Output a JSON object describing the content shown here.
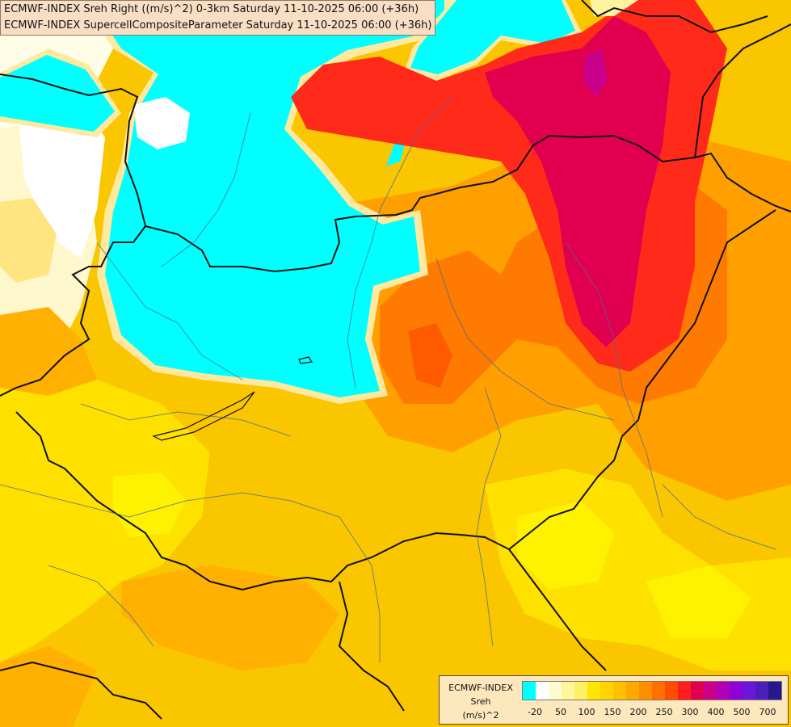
{
  "header": {
    "line1": "ECMWF-INDEX Sreh Right ((m/s)^2) 0-3km Saturday 11-10-2025 06:00 (+36h)",
    "line2": "ECMWF-INDEX SupercellCompositeParameter Saturday 11-10-2025 06:00 (+36h)"
  },
  "legend": {
    "title1": "ECMWF-INDEX",
    "title2": "Sreh",
    "title3": "(m/s)^2",
    "colors": [
      "#00ffff",
      "#ffffff",
      "#fffad0",
      "#fff59a",
      "#ffef66",
      "#ffe600",
      "#ffd400",
      "#ffc000",
      "#ffa800",
      "#ff8f00",
      "#ff7000",
      "#ff4c00",
      "#ff1c1c",
      "#e0004f",
      "#cc0088",
      "#b100b8",
      "#9000d8",
      "#6a18d8",
      "#4a20b8",
      "#281890"
    ],
    "ticks": [
      "-20",
      "50",
      "100",
      "150",
      "200",
      "250",
      "300",
      "400",
      "500",
      "700"
    ]
  },
  "colors": {
    "cyan": "#00ffff",
    "pale": "#fffad0",
    "yellow": "#ffef66",
    "gold": "#ffd400",
    "orange": "#ffb000",
    "deep_orange": "#ff7a00",
    "red": "#ff2020",
    "crimson": "#e0004f",
    "magenta": "#c8008a"
  }
}
